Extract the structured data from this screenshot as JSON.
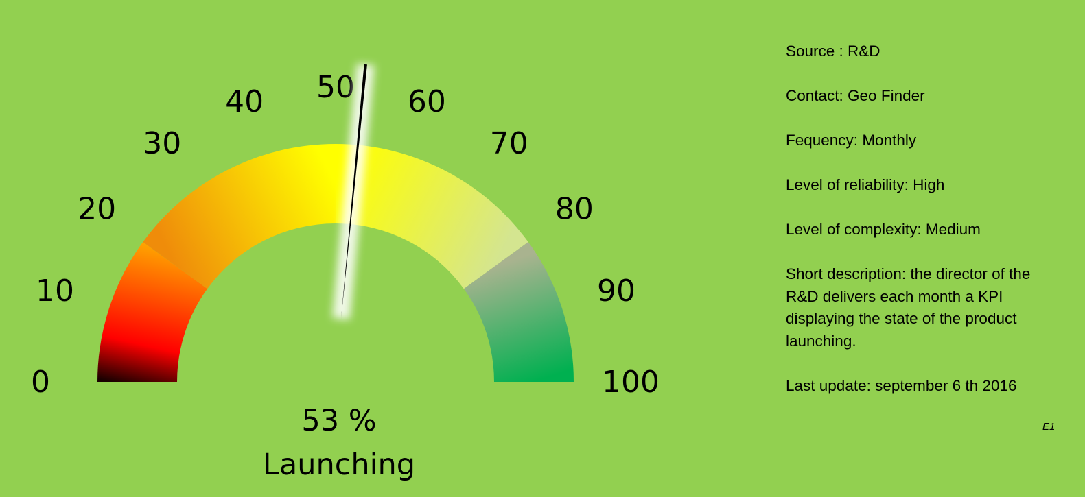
{
  "chart_data": {
    "type": "gauge",
    "value": 53,
    "range": [
      0,
      100
    ],
    "ticks": [
      0,
      10,
      20,
      30,
      40,
      50,
      60,
      70,
      80,
      90,
      100
    ],
    "tick_labels": [
      "0",
      "10",
      "20",
      "30",
      "40",
      "50",
      "60",
      "70",
      "80",
      "90",
      "100"
    ],
    "value_text": "53 %",
    "caption": "Launching",
    "bands": [
      {
        "from": 0,
        "to": 20,
        "color_start": "#ffa500",
        "color_end": "#1a0000"
      },
      {
        "from": 20,
        "to": 50,
        "color_start": "#ef8c0a",
        "color_end": "#ffff00"
      },
      {
        "from": 50,
        "to": 80,
        "color_start": "#ffff00",
        "color_end": "#d4e590"
      },
      {
        "from": 80,
        "to": 100,
        "color_start": "#a9b38f",
        "color_end": "#00b050"
      }
    ],
    "needle_color": "#000000"
  },
  "info": {
    "source": "Source : R&D",
    "contact": "Contact: Geo Finder",
    "frequency": "Fequency: Monthly",
    "reliability": "Level of reliability: High",
    "complexity": "Level of complexity: Medium",
    "description": "Short description:  the director of the R&D delivers each month a KPI displaying the state of the product launching.",
    "last_update": "Last update:  september 6 th 2016"
  },
  "code": "E1",
  "colors": {
    "background": "#92d050"
  }
}
